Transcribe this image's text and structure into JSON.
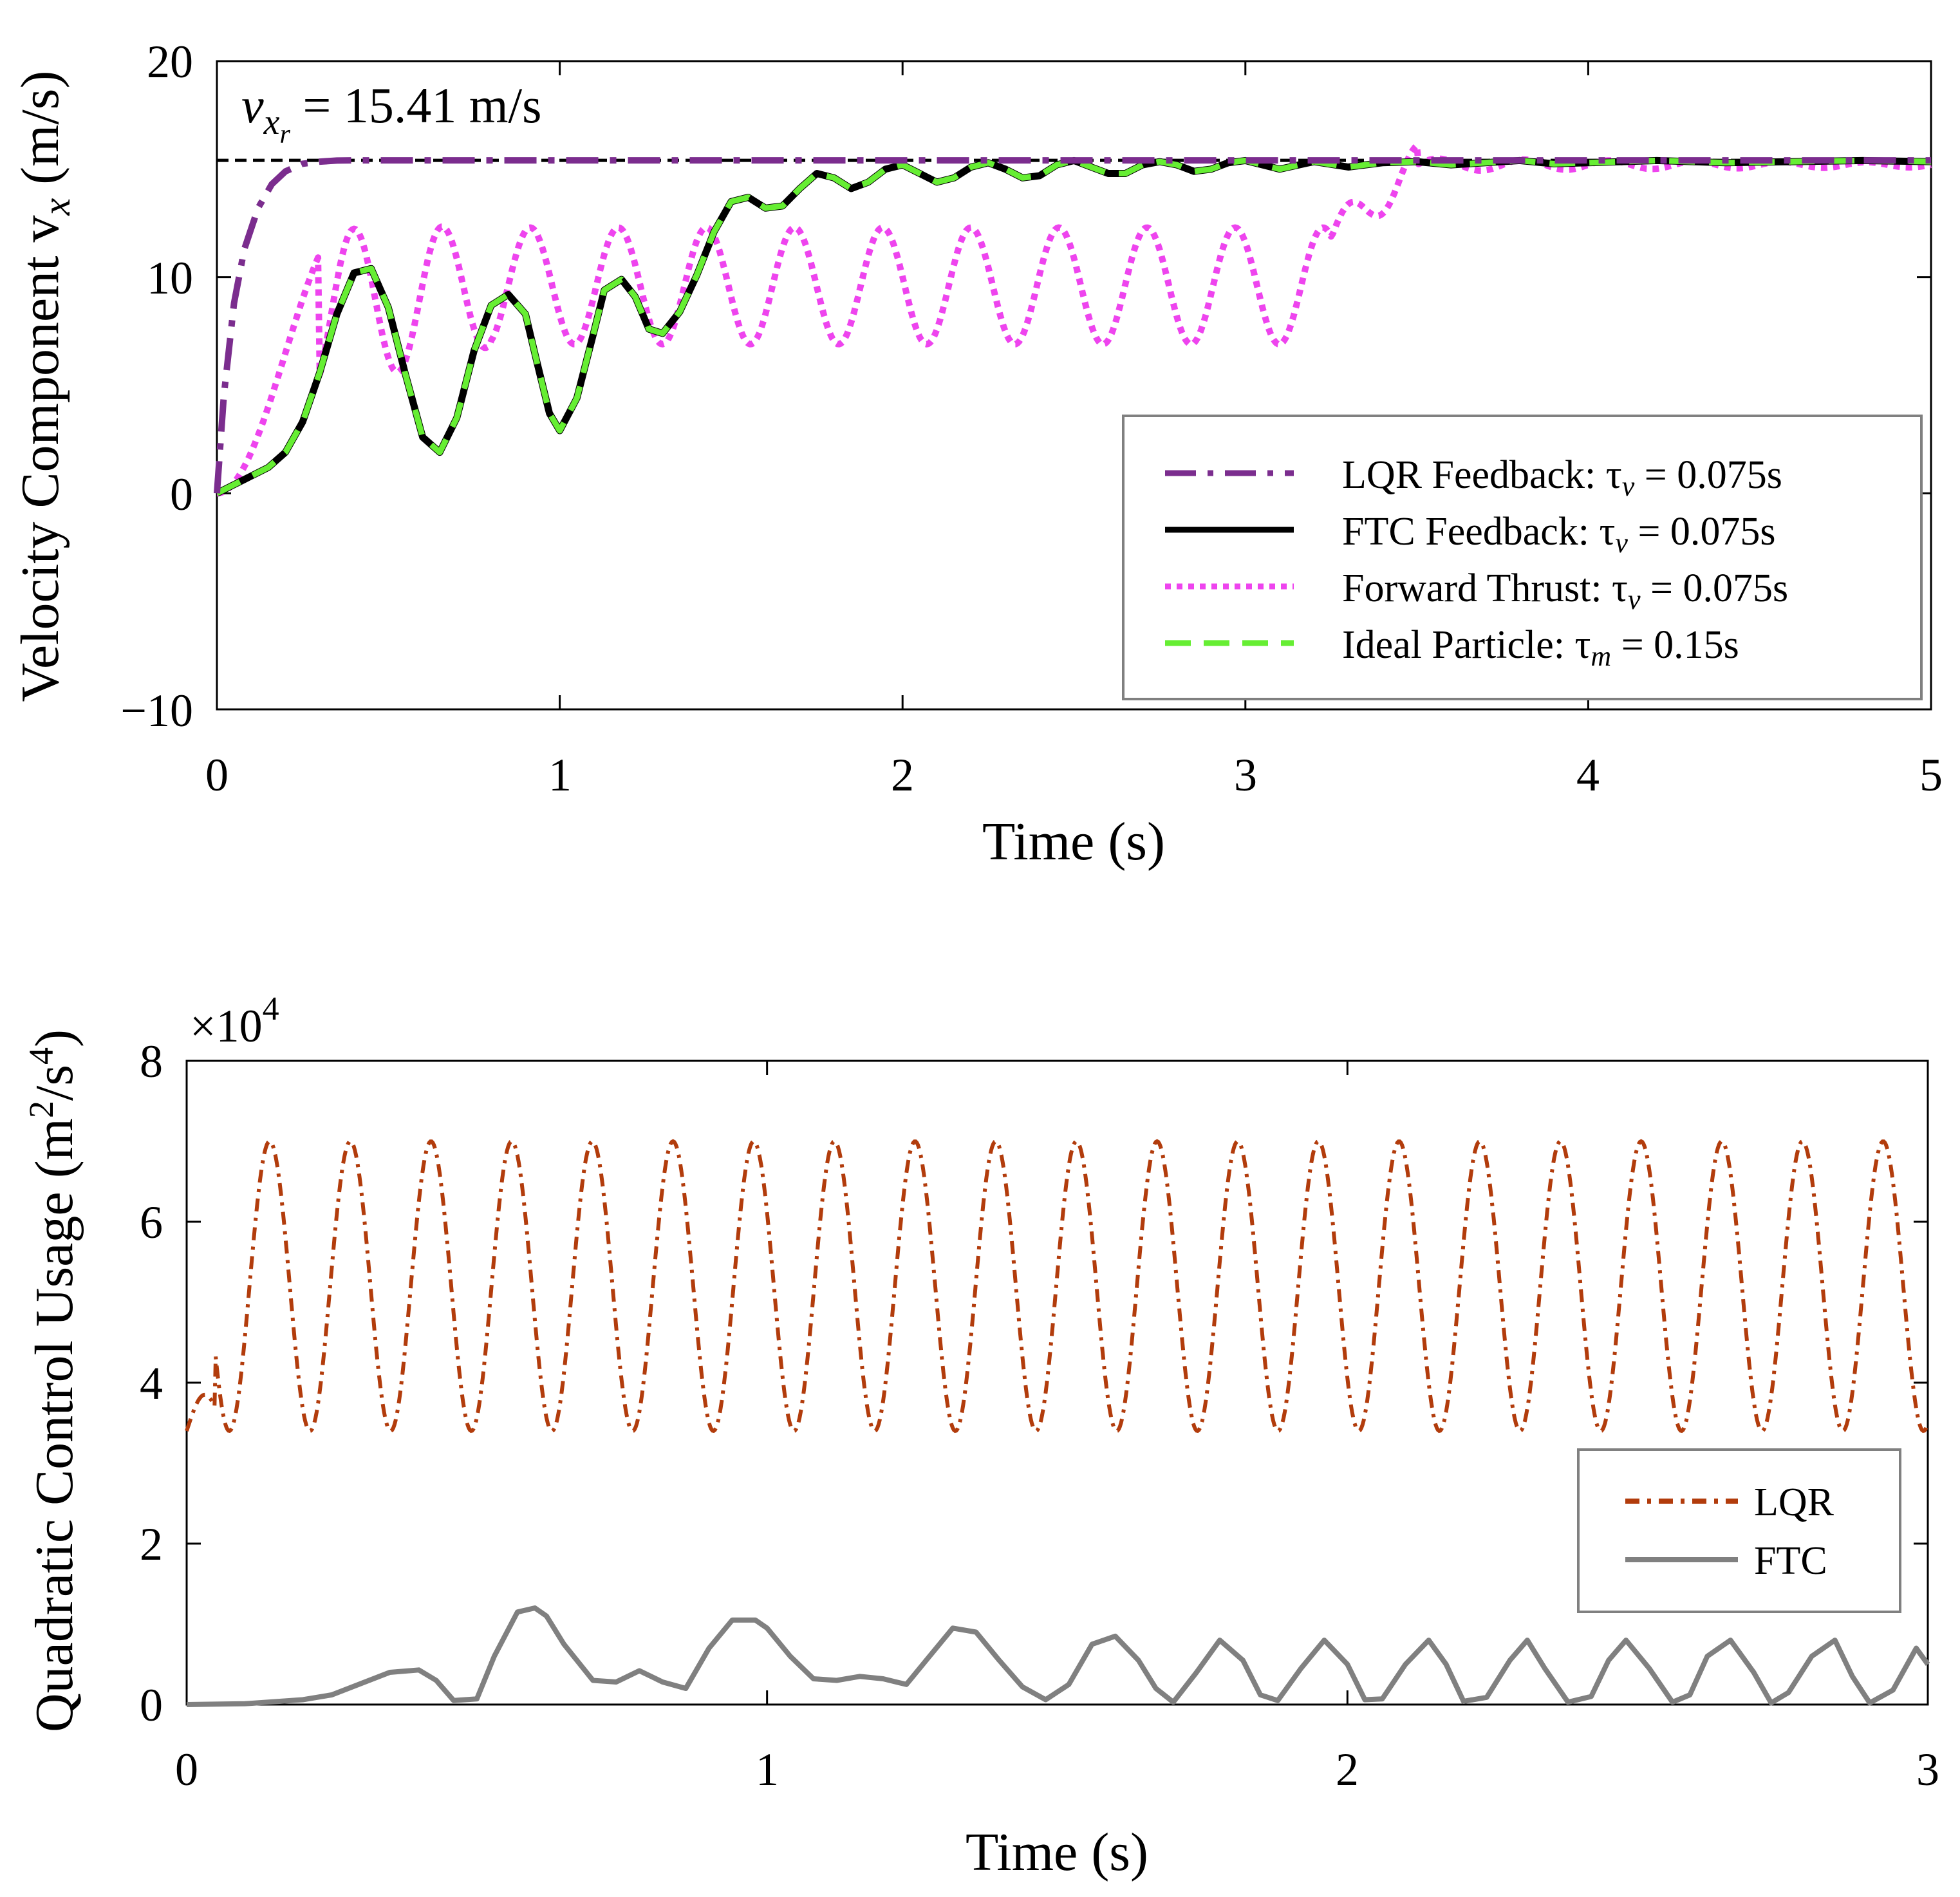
{
  "colors": {
    "lqr_top": "#7b2d8e",
    "ftc_top": "#000000",
    "thrust": "#ee44ee",
    "ideal": "#66ee33",
    "ref": "#000000",
    "lqr_bottom": "#b23c0c",
    "ftc_bottom": "#808080",
    "axis": "#000000",
    "legend_border": "#808080"
  },
  "chart_data": [
    {
      "type": "line",
      "xlabel": "Time (s)",
      "ylabel": "Velocity Component v",
      "ylabel_sub": "x",
      "ylabel_unit": " (m/s)",
      "xlim": [
        0,
        5
      ],
      "ylim": [
        -10,
        20
      ],
      "xticks": [
        0,
        1,
        2,
        3,
        4,
        5
      ],
      "yticks": [
        -10,
        0,
        10,
        20
      ],
      "ytick_labels": [
        "−10",
        "0",
        "10",
        "20"
      ],
      "annotation": {
        "main": "v",
        "sub": "x",
        "subsub": "r",
        "rest": " = 15.41 m/s",
        "reference_value": 15.41,
        "reference_range": [
          0,
          5
        ]
      },
      "legend": {
        "position": "bottom-right",
        "entries": [
          {
            "label": "LQR Feedback: τ",
            "sub": "v",
            "value": " = 0.075s",
            "series": "lqr"
          },
          {
            "label": "FTC Feedback: τ",
            "sub": "v",
            "value": " = 0.075s",
            "series": "ftc"
          },
          {
            "label": "Forward Thrust: τ",
            "sub": "v",
            "value": " = 0.075s",
            "series": "thrust"
          },
          {
            "label": "Ideal Particle: τ",
            "sub": "m",
            "value": " = 0.15s",
            "series": "ideal"
          }
        ]
      },
      "series": [
        {
          "name": "lqr",
          "style": "dashdot",
          "x": [
            0,
            0.02,
            0.05,
            0.08,
            0.12,
            0.16,
            0.2,
            0.25,
            0.3,
            0.35,
            0.4,
            0.5,
            1,
            2,
            3,
            4,
            5
          ],
          "y": [
            0,
            4.5,
            8.8,
            11.3,
            13.2,
            14.3,
            14.9,
            15.25,
            15.35,
            15.4,
            15.41,
            15.41,
            15.41,
            15.41,
            15.41,
            15.41,
            15.41
          ]
        },
        {
          "name": "ftc",
          "style": "solid",
          "x": [
            0,
            0.05,
            0.1,
            0.15,
            0.2,
            0.25,
            0.3,
            0.35,
            0.4,
            0.45,
            0.5,
            0.55,
            0.6,
            0.65,
            0.7,
            0.75,
            0.8,
            0.85,
            0.9,
            0.93,
            0.97,
            1.0,
            1.05,
            1.1,
            1.13,
            1.18,
            1.22,
            1.26,
            1.3,
            1.35,
            1.4,
            1.45,
            1.5,
            1.55,
            1.6,
            1.65,
            1.7,
            1.75,
            1.8,
            1.85,
            1.9,
            1.95,
            2.0,
            2.05,
            2.1,
            2.15,
            2.2,
            2.25,
            2.3,
            2.35,
            2.4,
            2.45,
            2.5,
            2.55,
            2.6,
            2.65,
            2.7,
            2.75,
            2.8,
            2.85,
            2.9,
            2.95,
            3.0,
            3.1,
            3.2,
            3.3,
            3.4,
            3.5,
            3.6,
            3.7,
            3.8,
            3.9,
            4.0,
            4.2,
            4.4,
            4.6,
            4.8,
            5.0
          ],
          "y": [
            0,
            0.4,
            0.8,
            1.2,
            1.9,
            3.3,
            5.6,
            8.3,
            10.2,
            10.4,
            8.6,
            5.5,
            2.6,
            1.9,
            3.5,
            6.6,
            8.7,
            9.2,
            8.3,
            6.3,
            3.7,
            2.9,
            4.4,
            7.5,
            9.4,
            9.9,
            9.1,
            7.6,
            7.4,
            8.4,
            10.1,
            12.1,
            13.5,
            13.7,
            13.2,
            13.3,
            14.1,
            14.8,
            14.6,
            14.1,
            14.4,
            15.0,
            15.2,
            14.8,
            14.4,
            14.6,
            15.1,
            15.3,
            15.0,
            14.6,
            14.7,
            15.2,
            15.4,
            15.1,
            14.8,
            14.8,
            15.2,
            15.35,
            15.2,
            14.9,
            15.0,
            15.3,
            15.4,
            15.0,
            15.35,
            15.1,
            15.3,
            15.35,
            15.2,
            15.3,
            15.4,
            15.25,
            15.3,
            15.4,
            15.3,
            15.35,
            15.4,
            15.35
          ]
        },
        {
          "name": "thrust",
          "style": "dotted",
          "x": [],
          "y": []
        },
        {
          "name": "ideal",
          "style": "dashed",
          "x": [],
          "y": []
        }
      ]
    },
    {
      "type": "line",
      "xlabel": "Time (s)",
      "ylabel": "Quadratic Control Usage (m",
      "ylabel_sup1": "2",
      "ylabel_mid": "/s",
      "ylabel_sup2": "4",
      "ylabel_end": ")",
      "exponent_label": "×10",
      "exponent_power": "4",
      "xlim": [
        0,
        3
      ],
      "ylim": [
        0,
        80000
      ],
      "xticks": [
        0,
        1,
        2,
        3
      ],
      "yticks": [
        0,
        20000,
        40000,
        60000,
        80000
      ],
      "ytick_labels": [
        "0",
        "2",
        "4",
        "6",
        "8"
      ],
      "legend": {
        "position": "right",
        "entries": [
          {
            "label": "LQR",
            "series": "lqr"
          },
          {
            "label": "FTC",
            "series": "ftc"
          }
        ]
      },
      "series": [
        {
          "name": "lqr",
          "style": "dashdot",
          "baseline": 34000,
          "peak": 70000,
          "period": 0.139,
          "phase": 0.143,
          "x_end": 3
        },
        {
          "name": "ftc",
          "style": "solid",
          "x": [
            0,
            0.1,
            0.2,
            0.25,
            0.3,
            0.35,
            0.4,
            0.43,
            0.46,
            0.5,
            0.53,
            0.57,
            0.6,
            0.62,
            0.65,
            0.7,
            0.74,
            0.78,
            0.82,
            0.86,
            0.9,
            0.94,
            0.98,
            1.0,
            1.04,
            1.08,
            1.12,
            1.16,
            1.2,
            1.24,
            1.28,
            1.32,
            1.36,
            1.4,
            1.44,
            1.48,
            1.52,
            1.56,
            1.6,
            1.64,
            1.67,
            1.7,
            1.74,
            1.78,
            1.82,
            1.85,
            1.88,
            1.92,
            1.96,
            2.0,
            2.03,
            2.06,
            2.1,
            2.14,
            2.17,
            2.2,
            2.24,
            2.28,
            2.31,
            2.34,
            2.38,
            2.42,
            2.45,
            2.48,
            2.52,
            2.56,
            2.59,
            2.62,
            2.66,
            2.7,
            2.73,
            2.76,
            2.8,
            2.84,
            2.87,
            2.9,
            2.94,
            2.98,
            3.0
          ],
          "y": [
            0,
            100,
            600,
            1200,
            2600,
            4000,
            4300,
            3000,
            500,
            700,
            6000,
            11500,
            12000,
            11000,
            7500,
            3000,
            2800,
            4200,
            2800,
            2000,
            7000,
            10500,
            10500,
            9500,
            6000,
            3200,
            3000,
            3500,
            3200,
            2500,
            6000,
            9500,
            9000,
            5500,
            2200,
            600,
            2500,
            7500,
            8500,
            5500,
            2000,
            300,
            4000,
            8000,
            5500,
            1200,
            500,
            4500,
            8000,
            5000,
            600,
            700,
            5000,
            8000,
            5000,
            400,
            900,
            5500,
            8000,
            4500,
            300,
            1000,
            5500,
            8000,
            4500,
            300,
            1200,
            6000,
            8000,
            4000,
            200,
            1500,
            6000,
            8000,
            3500,
            200,
            1800,
            7000,
            5000
          ]
        }
      ]
    }
  ]
}
